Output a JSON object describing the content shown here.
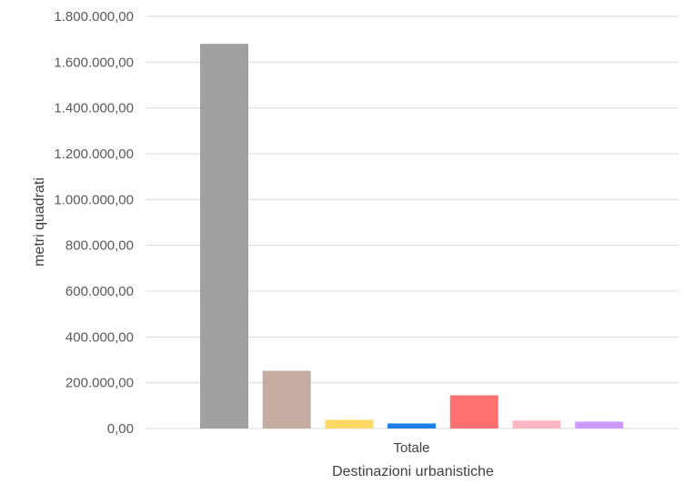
{
  "chart_data": {
    "type": "bar",
    "title": "",
    "xlabel": "Destinazioni urbanistiche",
    "ylabel": "metri quadrati",
    "categories": [
      "Totale"
    ],
    "series": [
      {
        "values": [
          1680000
        ],
        "color": "#a0a0a0"
      },
      {
        "values": [
          252000
        ],
        "color": "#c4aca0"
      },
      {
        "values": [
          38000
        ],
        "color": "#ffd966"
      },
      {
        "values": [
          22000
        ],
        "color": "#1e7ee6"
      },
      {
        "values": [
          145000
        ],
        "color": "#ff7070"
      },
      {
        "values": [
          35000
        ],
        "color": "#ffb6c1"
      },
      {
        "values": [
          30000
        ],
        "color": "#cc99ff"
      }
    ],
    "ylim": [
      0,
      1800000
    ],
    "yticks": [
      0,
      200000,
      400000,
      600000,
      800000,
      1000000,
      1200000,
      1400000,
      1600000,
      1800000
    ],
    "ytick_labels": [
      "0,00",
      "200.000,00",
      "400.000,00",
      "600.000,00",
      "800.000,00",
      "1.000.000,00",
      "1.200.000,00",
      "1.400.000,00",
      "1.600.000,00",
      "1.800.000,00"
    ],
    "grid": true,
    "legend": "none"
  }
}
